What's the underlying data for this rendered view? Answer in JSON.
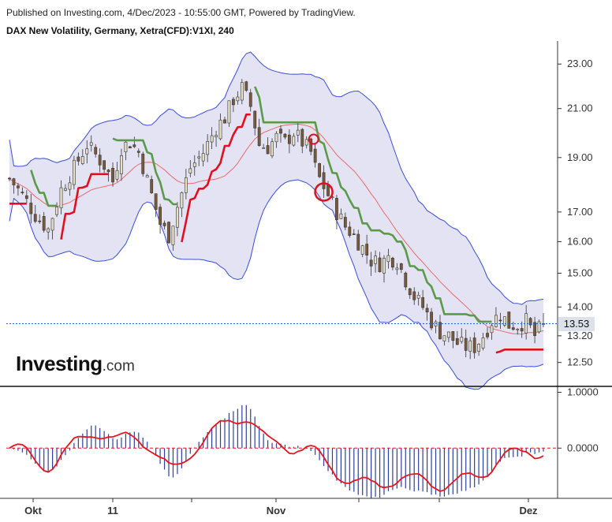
{
  "header": {
    "published": "Published on Investing.com, 4/Dec/2023 - 10:55:00 GMT, Powered by TradingView.",
    "symbol": "DAX New Volatility, Germany, Xetra(CFD):V1XI, 240"
  },
  "logo": {
    "brand": "Investing",
    "suffix": ".com"
  },
  "last_price_label": "13.53",
  "colors": {
    "up_candle": "#e6e0c8",
    "down_candle": "#7a5a3a",
    "band_fill": "#e3e3f3",
    "band_line": "#3b4cdb",
    "middle_band": "#e86a6a",
    "supertrend_up": "#5a9a4a",
    "supertrend_down": "#e01020",
    "osc_line": "#e8141e",
    "osc_hist": "#2f3f99",
    "last_price_line": "#3355cc"
  },
  "chart_data": [
    {
      "type": "candlestick",
      "title": "DAX New Volatility, Germany, Xetra(CFD):V1XI, 240",
      "x_ticks": [
        "Okt",
        "11",
        "Nov",
        "Dez"
      ],
      "y_ticks": [
        "23.00",
        "21.00",
        "19.00",
        "17.00",
        "16.00",
        "15.00",
        "14.00",
        "13.20",
        "12.50"
      ],
      "y_tick_values": [
        23.0,
        21.0,
        19.0,
        17.0,
        16.0,
        15.0,
        14.0,
        13.2,
        12.5
      ],
      "y_scale": "log",
      "ylim": [
        12.0,
        23.8
      ],
      "last_price": 13.53,
      "series": [
        {
          "name": "",
          "kind": "candlestick",
          "close_path": [
            [
              0,
              18.2
            ],
            [
              3,
              17.6
            ],
            [
              6,
              16.9
            ],
            [
              9,
              16.4
            ],
            [
              12,
              17.8
            ],
            [
              15,
              18.6
            ],
            [
              18,
              19.5
            ],
            [
              20,
              19.1
            ],
            [
              22,
              18.7
            ],
            [
              24,
              18.1
            ],
            [
              26,
              19.4
            ],
            [
              28,
              19.6
            ],
            [
              30,
              19.2
            ],
            [
              33,
              17.6
            ],
            [
              35,
              16.6
            ],
            [
              37,
              16.2
            ],
            [
              39,
              17.2
            ],
            [
              42,
              18.6
            ],
            [
              45,
              19.2
            ],
            [
              48,
              20.2
            ],
            [
              50,
              20.6
            ],
            [
              52,
              21.4
            ],
            [
              54,
              21.9
            ],
            [
              56,
              21.1
            ],
            [
              58,
              19.5
            ],
            [
              60,
              19.4
            ],
            [
              62,
              19.8
            ],
            [
              64,
              19.6
            ],
            [
              66,
              20.0
            ],
            [
              68,
              19.6
            ],
            [
              70,
              19.2
            ],
            [
              71,
              18.6
            ],
            [
              72,
              18.2
            ],
            [
              74,
              17.6
            ],
            [
              76,
              17.0
            ],
            [
              78,
              16.5
            ],
            [
              80,
              16.2
            ],
            [
              82,
              15.8
            ],
            [
              84,
              15.4
            ],
            [
              86,
              15.3
            ],
            [
              88,
              15.5
            ],
            [
              90,
              15.4
            ],
            [
              92,
              14.8
            ],
            [
              94,
              14.3
            ],
            [
              96,
              14.0
            ],
            [
              98,
              13.6
            ],
            [
              100,
              13.3
            ],
            [
              102,
              13.2
            ],
            [
              104,
              13.0
            ],
            [
              106,
              12.9
            ],
            [
              108,
              12.9
            ],
            [
              110,
              13.2
            ],
            [
              112,
              13.6
            ],
            [
              114,
              13.8
            ],
            [
              116,
              13.5
            ],
            [
              118,
              13.5
            ],
            [
              120,
              13.6
            ],
            [
              122,
              13.2
            ],
            [
              124,
              13.53
            ]
          ]
        },
        {
          "name": "",
          "kind": "bollinger-bands"
        },
        {
          "name": "",
          "kind": "supertrend"
        }
      ]
    },
    {
      "type": "histogram+line",
      "y_ticks": [
        "1.0000",
        "0.0000"
      ],
      "y_tick_values": [
        1.0,
        0.0
      ],
      "ylim": [
        -0.9,
        1.05
      ],
      "series": [
        {
          "name": "",
          "kind": "oscillator-line"
        },
        {
          "name": "",
          "kind": "oscillator-histogram"
        }
      ]
    }
  ]
}
